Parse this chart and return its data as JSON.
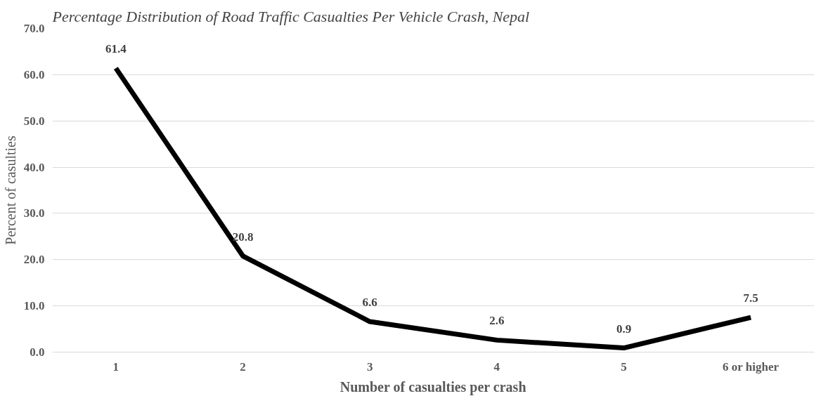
{
  "chart_data": {
    "type": "line",
    "title": "Percentage Distribution of Road Traffic Casualties Per Vehicle Crash, Nepal",
    "xlabel": "Number of casualties per crash",
    "ylabel": "Percent of casulties",
    "categories": [
      "1",
      "2",
      "3",
      "4",
      "5",
      "6 or higher"
    ],
    "series": [
      {
        "color": "#000000",
        "values": [
          61.4,
          20.8,
          6.6,
          2.6,
          0.9,
          7.5
        ]
      }
    ],
    "ylim": [
      0,
      70
    ],
    "yticks": [
      {
        "value": 0,
        "label": "0.0"
      },
      {
        "value": 10,
        "label": "10.0"
      },
      {
        "value": 20,
        "label": "20.0"
      },
      {
        "value": 30,
        "label": "30.0"
      },
      {
        "value": 40,
        "label": "40.0"
      },
      {
        "value": 50,
        "label": "50.0"
      },
      {
        "value": 60,
        "label": "60.0"
      },
      {
        "value": 70,
        "label": "70.0"
      }
    ],
    "grid": "y",
    "data_labels": true,
    "marker": "none",
    "line_style": "solid"
  }
}
